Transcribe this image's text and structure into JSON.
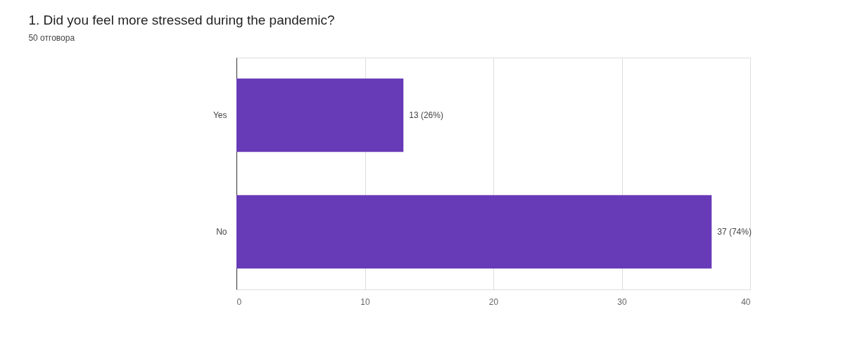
{
  "chart_data": {
    "type": "bar",
    "orientation": "horizontal",
    "title": "1. Did you feel more stressed during the pandemic?",
    "subtitle": "50 отговора",
    "categories": [
      "Yes",
      "No"
    ],
    "values": [
      13,
      37
    ],
    "value_labels": [
      "13 (26%)",
      "37 (74%)"
    ],
    "color": "#673ab7",
    "xlim": [
      0,
      40
    ],
    "xticks": [
      0,
      10,
      20,
      30,
      40
    ],
    "grid": "x"
  }
}
